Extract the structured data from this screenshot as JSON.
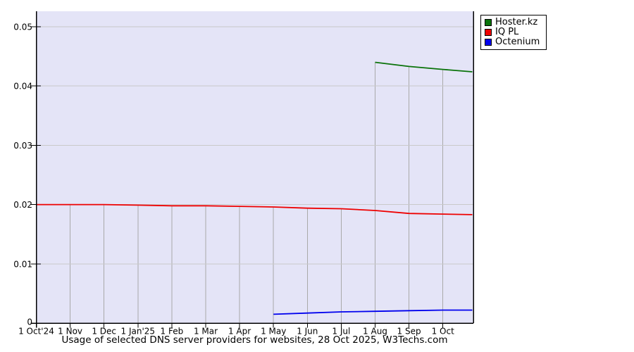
{
  "title": "Usage of selected DNS server providers for websites, 28 Oct 2025, W3Techs.com",
  "chart_data": {
    "type": "line",
    "x_tick_labels": [
      "1 Oct'24",
      "1 Nov",
      "1 Dec",
      "1 Jan'25",
      "1 Feb",
      "1 Mar",
      "1 Apr",
      "1 May",
      "1 Jun",
      "1 Jul",
      "1 Aug",
      "1 Sep",
      "1 Oct"
    ],
    "x_axis_note": "month index 0 = 1 Oct 2024, 12.87 = 28 Oct 2025",
    "x_end": 12.87,
    "y_ticks": [
      0,
      0.01,
      0.02,
      0.03,
      0.04,
      0.05
    ],
    "y_tick_labels": [
      "0",
      "0.01",
      "0.02",
      "0.03",
      "0.04",
      "0.05"
    ],
    "ylim": [
      0,
      0.0526
    ],
    "grid": true,
    "legend_position": "top-right",
    "series": [
      {
        "name": "Hoster.kz",
        "color": "#0a730a",
        "points": [
          [
            10,
            0.044
          ],
          [
            11,
            0.0433
          ],
          [
            12,
            0.0428
          ],
          [
            12.87,
            0.0424
          ]
        ]
      },
      {
        "name": "IQ PL",
        "color": "#ee0000",
        "points": [
          [
            0,
            0.02
          ],
          [
            1,
            0.02
          ],
          [
            2,
            0.02
          ],
          [
            3,
            0.0199
          ],
          [
            4,
            0.0198
          ],
          [
            5,
            0.0198
          ],
          [
            6,
            0.0197
          ],
          [
            7,
            0.0196
          ],
          [
            8,
            0.0194
          ],
          [
            9,
            0.0193
          ],
          [
            10,
            0.019
          ],
          [
            11,
            0.0185
          ],
          [
            12,
            0.0184
          ],
          [
            12.87,
            0.0183
          ]
        ]
      },
      {
        "name": "Octenium",
        "color": "#0000ee",
        "points": [
          [
            7,
            0.0015
          ],
          [
            8,
            0.0017
          ],
          [
            9,
            0.0019
          ],
          [
            10,
            0.002
          ],
          [
            11,
            0.0021
          ],
          [
            12,
            0.0022
          ],
          [
            12.87,
            0.0022
          ]
        ]
      }
    ]
  },
  "colors": {
    "page_bg": "#ffffff",
    "plot_bg": "#e4e4f7",
    "grid_horizontal": "#c9c9c9",
    "grid_vertical": "#a9a9a9",
    "axis": "#000000",
    "text": "#000000"
  }
}
